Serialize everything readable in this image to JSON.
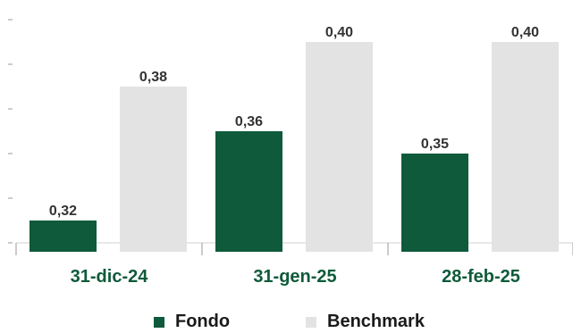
{
  "chart_data": {
    "type": "bar",
    "categories": [
      "31-dic-24",
      "31-gen-25",
      "28-feb-25"
    ],
    "series": [
      {
        "name": "Fondo",
        "values": [
          0.32,
          0.36,
          0.35
        ],
        "color": "#0e5a3a"
      },
      {
        "name": "Benchmark",
        "values": [
          0.38,
          0.4,
          0.4
        ],
        "color": "#e3e3e3"
      }
    ],
    "value_labels": [
      [
        "0,32",
        "0,36",
        "0,35"
      ],
      [
        "0,38",
        "0,40",
        "0,40"
      ]
    ],
    "ylim": [
      0.31,
      0.41
    ],
    "category_label_color": "#0e5a3a",
    "grid": false,
    "legend_position": "bottom"
  }
}
